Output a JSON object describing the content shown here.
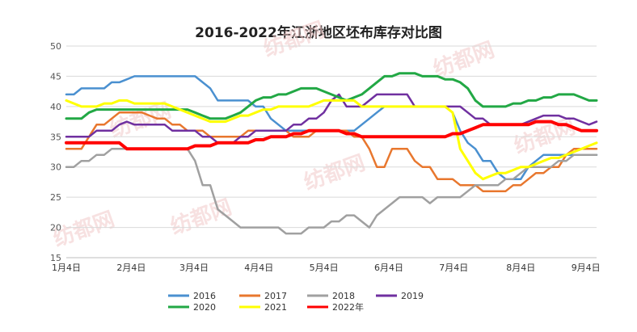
{
  "chart_data": {
    "type": "line",
    "title": "2016-2022年江浙地区坯布库存对比图",
    "xlabel": "",
    "ylabel": "",
    "ylim": [
      15,
      50
    ],
    "yticks": [
      15,
      20,
      25,
      30,
      35,
      40,
      45,
      50
    ],
    "xlim": [
      0,
      35
    ],
    "xticks": [
      {
        "pos": 0,
        "label": "1月4日"
      },
      {
        "pos": 4.29,
        "label": "2月4日"
      },
      {
        "pos": 8.43,
        "label": "3月4日"
      },
      {
        "pos": 12.71,
        "label": "4月4日"
      },
      {
        "pos": 17.0,
        "label": "5月4日"
      },
      {
        "pos": 21.29,
        "label": "6月4日"
      },
      {
        "pos": 25.57,
        "label": "7月4日"
      },
      {
        "pos": 30.0,
        "label": "8月4日"
      },
      {
        "pos": 34.29,
        "label": "9月4日"
      }
    ],
    "grid": "horizontal",
    "legend_position": "bottom",
    "watermark": "纺都网",
    "series": [
      {
        "name": "2016",
        "color": "#4a90d0",
        "width": 2.5,
        "x": [
          0,
          0.5,
          1,
          1.5,
          2,
          2.5,
          3,
          3.5,
          4,
          4.5,
          5,
          5.5,
          6,
          6.5,
          7,
          7.5,
          8,
          8.5,
          9,
          9.5,
          10,
          10.5,
          11,
          11.5,
          12,
          12.5,
          13,
          13.5,
          14,
          14.5,
          15,
          15.5,
          16,
          16.5,
          17,
          17.5,
          18,
          18.5,
          19,
          19.5,
          20,
          20.5,
          21,
          21.5,
          22,
          22.5,
          23,
          23.5,
          24,
          24.5,
          25,
          25.5,
          26,
          26.5,
          27,
          27.5,
          28,
          28.5,
          29,
          29.5,
          30,
          30.5,
          31,
          31.5,
          32,
          32.5,
          33,
          33.5,
          34,
          34.5,
          35
        ],
        "y": [
          42,
          42,
          43,
          43,
          43,
          43,
          44,
          44,
          44.5,
          45,
          45,
          45,
          45,
          45,
          45,
          45,
          45,
          45,
          44,
          43,
          41,
          41,
          41,
          41,
          41,
          40,
          40,
          38,
          37,
          36,
          36,
          36,
          36,
          36,
          36,
          36,
          36,
          36,
          36,
          37,
          38,
          39,
          40,
          40,
          40,
          40,
          40,
          40,
          40,
          40,
          40,
          39,
          36,
          34,
          33,
          31,
          31,
          29,
          28,
          28,
          28,
          30,
          31,
          32,
          32,
          32,
          32,
          32,
          32,
          32,
          32
        ]
      },
      {
        "name": "2017",
        "color": "#e8772e",
        "width": 2.5,
        "x": [
          0,
          0.5,
          1,
          1.5,
          2,
          2.5,
          3,
          3.5,
          4,
          4.5,
          5,
          5.5,
          6,
          6.5,
          7,
          7.5,
          8,
          8.5,
          9,
          9.5,
          10,
          10.5,
          11,
          11.5,
          12,
          12.5,
          13,
          13.5,
          14,
          14.5,
          15,
          15.5,
          16,
          16.5,
          17,
          17.5,
          18,
          18.5,
          19,
          19.5,
          20,
          20.5,
          21,
          21.5,
          22,
          22.5,
          23,
          23.5,
          24,
          24.5,
          25,
          25.5,
          26,
          26.5,
          27,
          27.5,
          28,
          28.5,
          29,
          29.5,
          30,
          30.5,
          31,
          31.5,
          32,
          32.5,
          33,
          33.5,
          34,
          34.5,
          35
        ],
        "y": [
          33,
          33,
          33,
          35,
          37,
          37,
          38,
          39,
          39,
          39,
          39,
          38.5,
          38,
          38,
          37,
          37,
          36,
          36,
          36,
          35,
          35,
          35,
          35,
          35,
          36,
          36,
          36,
          36,
          36,
          36,
          35,
          35,
          35,
          36,
          36,
          36,
          36,
          36,
          35,
          35,
          33,
          30,
          30,
          33,
          33,
          33,
          31,
          30,
          30,
          28,
          28,
          28,
          27,
          27,
          27,
          26,
          26,
          26,
          26,
          27,
          27,
          28,
          29,
          29,
          30,
          30,
          32,
          33,
          33,
          33,
          33
        ]
      },
      {
        "name": "2018",
        "color": "#a0a0a0",
        "width": 2.5,
        "x": [
          0,
          0.5,
          1,
          1.5,
          2,
          2.5,
          3,
          3.5,
          4,
          4.5,
          5,
          5.5,
          6,
          6.5,
          7,
          7.5,
          8,
          8.5,
          9,
          9.5,
          10,
          10.5,
          11,
          11.5,
          12,
          12.5,
          13,
          13.5,
          14,
          14.5,
          15,
          15.5,
          16,
          16.5,
          17,
          17.5,
          18,
          18.5,
          19,
          19.5,
          20,
          20.5,
          21,
          21.5,
          22,
          22.5,
          23,
          23.5,
          24,
          24.5,
          25,
          25.5,
          26,
          26.5,
          27,
          27.5,
          28,
          28.5,
          29,
          29.5,
          30,
          30.5,
          31,
          31.5,
          32,
          32.5,
          33,
          33.5,
          34,
          34.5,
          35
        ],
        "y": [
          30,
          30,
          31,
          31,
          32,
          32,
          33,
          33,
          33,
          33,
          33,
          33,
          33,
          33,
          33,
          33,
          33,
          31,
          27,
          27,
          23,
          22,
          21,
          20,
          20,
          20,
          20,
          20,
          20,
          19,
          19,
          19,
          20,
          20,
          20,
          21,
          21,
          22,
          22,
          21,
          20,
          22,
          23,
          24,
          25,
          25,
          25,
          25,
          24,
          25,
          25,
          25,
          25,
          26,
          27,
          27,
          27,
          27,
          28,
          28,
          29,
          30,
          30,
          30,
          30,
          31,
          31,
          32,
          32,
          32,
          32
        ]
      },
      {
        "name": "2019",
        "color": "#7030a0",
        "width": 2.5,
        "x": [
          0,
          0.5,
          1,
          1.5,
          2,
          2.5,
          3,
          3.5,
          4,
          4.5,
          5,
          5.5,
          6,
          6.5,
          7,
          7.5,
          8,
          8.5,
          9,
          9.5,
          10,
          10.5,
          11,
          11.5,
          12,
          12.5,
          13,
          13.5,
          14,
          14.5,
          15,
          15.5,
          16,
          16.5,
          17,
          17.5,
          18,
          18.5,
          19,
          19.5,
          20,
          20.5,
          21,
          21.5,
          22,
          22.5,
          23,
          23.5,
          24,
          24.5,
          25,
          25.5,
          26,
          26.5,
          27,
          27.5,
          28,
          28.5,
          29,
          29.5,
          30,
          30.5,
          31,
          31.5,
          32,
          32.5,
          33,
          33.5,
          34,
          34.5,
          35
        ],
        "y": [
          35,
          35,
          35,
          35,
          36,
          36,
          36,
          37,
          37.5,
          37,
          37,
          37,
          37,
          37,
          36,
          36,
          36,
          36,
          35,
          35,
          34,
          34,
          34,
          35,
          35,
          36,
          36,
          36,
          36,
          36,
          37,
          37,
          38,
          38,
          39,
          41,
          42,
          40,
          40,
          40,
          41,
          42,
          42,
          42,
          42,
          42,
          40,
          40,
          40,
          40,
          40,
          40,
          40,
          39,
          38,
          38,
          37,
          37,
          37,
          37,
          37,
          37.5,
          38,
          38.5,
          38.5,
          38.5,
          38,
          38,
          37.5,
          37,
          37.5
        ]
      },
      {
        "name": "2020",
        "color": "#22a845",
        "width": 3,
        "x": [
          0,
          0.5,
          1,
          1.5,
          2,
          2.5,
          3,
          3.5,
          4,
          4.5,
          5,
          5.5,
          6,
          6.5,
          7,
          7.5,
          8,
          8.5,
          9,
          9.5,
          10,
          10.5,
          11,
          11.5,
          12,
          12.5,
          13,
          13.5,
          14,
          14.5,
          15,
          15.5,
          16,
          16.5,
          17,
          17.5,
          18,
          18.5,
          19,
          19.5,
          20,
          20.5,
          21,
          21.5,
          22,
          22.5,
          23,
          23.5,
          24,
          24.5,
          25,
          25.5,
          26,
          26.5,
          27,
          27.5,
          28,
          28.5,
          29,
          29.5,
          30,
          30.5,
          31,
          31.5,
          32,
          32.5,
          33,
          33.5,
          34,
          34.5,
          35
        ],
        "y": [
          38,
          38,
          38,
          39,
          39.5,
          39.5,
          39.5,
          39.5,
          39.5,
          39.5,
          39.5,
          39.5,
          39.5,
          39.5,
          39.5,
          39.5,
          39.5,
          39,
          38.5,
          38,
          38,
          38,
          38.5,
          39,
          40,
          41,
          41.5,
          41.5,
          42,
          42,
          42.5,
          43,
          43,
          43,
          42.5,
          42,
          41.5,
          41,
          41.5,
          42,
          43,
          44,
          45,
          45,
          45.5,
          45.5,
          45.5,
          45,
          45,
          45,
          44.5,
          44.5,
          44,
          43,
          41,
          40,
          40,
          40,
          40,
          40.5,
          40.5,
          41,
          41,
          41.5,
          41.5,
          42,
          42,
          42,
          41.5,
          41,
          41
        ]
      },
      {
        "name": "2021",
        "color": "#ffff00",
        "width": 3,
        "x": [
          0,
          0.5,
          1,
          1.5,
          2,
          2.5,
          3,
          3.5,
          4,
          4.5,
          5,
          5.5,
          6,
          6.5,
          7,
          7.5,
          8,
          8.5,
          9,
          9.5,
          10,
          10.5,
          11,
          11.5,
          12,
          12.5,
          13,
          13.5,
          14,
          14.5,
          15,
          15.5,
          16,
          16.5,
          17,
          17.5,
          18,
          18.5,
          19,
          19.5,
          20,
          20.5,
          21,
          21.5,
          22,
          22.5,
          23,
          23.5,
          24,
          24.5,
          25,
          25.5,
          26,
          26.5,
          27,
          27.5,
          28,
          28.5,
          29,
          29.5,
          30,
          30.5,
          31,
          31.5,
          32,
          32.5,
          33,
          33.5,
          34,
          34.5,
          35
        ],
        "y": [
          41,
          40.5,
          40,
          40,
          40,
          40.5,
          40.5,
          41,
          41,
          40.5,
          40.5,
          40.5,
          40.5,
          40.5,
          40,
          39.5,
          39,
          38.5,
          38,
          37.5,
          37.5,
          37.5,
          38,
          38.5,
          38.5,
          39,
          39.5,
          39.5,
          40,
          40,
          40,
          40,
          40,
          40.5,
          41,
          41,
          41,
          41,
          41,
          40,
          40,
          40,
          40,
          40,
          40,
          40,
          40,
          40,
          40,
          40,
          40,
          39,
          33,
          31,
          29,
          28,
          28.5,
          29,
          29,
          29.5,
          30,
          30,
          30.5,
          31,
          31.5,
          31.5,
          32,
          32.5,
          33,
          33.5,
          34
        ]
      },
      {
        "name": "2022年",
        "color": "#ff0000",
        "width": 4,
        "x": [
          0,
          0.5,
          1,
          1.5,
          2,
          2.5,
          3,
          3.5,
          4,
          4.5,
          5,
          5.5,
          6,
          6.5,
          7,
          7.5,
          8,
          8.5,
          9,
          9.5,
          10,
          10.5,
          11,
          11.5,
          12,
          12.5,
          13,
          13.5,
          14,
          14.5,
          15,
          15.5,
          16,
          16.5,
          17,
          17.5,
          18,
          18.5,
          19,
          19.5,
          20,
          20.5,
          21,
          21.5,
          22,
          22.5,
          23,
          23.5,
          24,
          24.5,
          25,
          25.5,
          26,
          26.5,
          27,
          27.5,
          28,
          28.5,
          29,
          29.5,
          30,
          30.5,
          31,
          31.5,
          32,
          32.5,
          33,
          33.5,
          34,
          34.5,
          35
        ],
        "y": [
          34,
          34,
          34,
          34,
          34,
          34,
          34,
          34,
          33,
          33,
          33,
          33,
          33,
          33,
          33,
          33,
          33,
          33.5,
          33.5,
          33.5,
          34,
          34,
          34,
          34,
          34,
          34.5,
          34.5,
          35,
          35,
          35,
          35.5,
          35.5,
          36,
          36,
          36,
          36,
          36,
          35.5,
          35.5,
          35,
          35,
          35,
          35,
          35,
          35,
          35,
          35,
          35,
          35,
          35,
          35,
          35.5,
          35.5,
          36,
          36.5,
          37,
          37,
          37,
          37,
          37,
          37,
          37,
          37.5,
          37.5,
          37.5,
          37,
          37,
          36.5,
          36,
          36,
          36
        ]
      }
    ]
  }
}
